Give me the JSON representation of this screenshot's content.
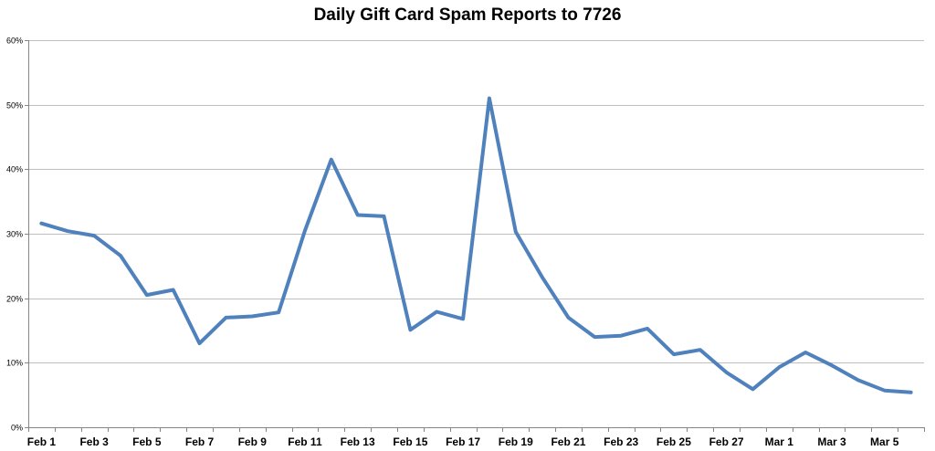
{
  "chart_data": {
    "type": "line",
    "title": "Daily Gift Card Spam Reports to 7726",
    "xlabel": "",
    "ylabel": "",
    "ylim": [
      0,
      60
    ],
    "y_unit": "%",
    "y_ticks": [
      "0%",
      "10%",
      "20%",
      "30%",
      "40%",
      "50%",
      "60%"
    ],
    "grid": true,
    "legend": "none",
    "x_tick_labels": [
      "Feb 1",
      "Feb 3",
      "Feb 5",
      "Feb 7",
      "Feb 9",
      "Feb 11",
      "Feb 13",
      "Feb 15",
      "Feb 17",
      "Feb 19",
      "Feb 21",
      "Feb 23",
      "Feb 25",
      "Feb 27",
      "Mar 1",
      "Mar 3",
      "Mar 5"
    ],
    "x": [
      "Feb 1",
      "Feb 2",
      "Feb 3",
      "Feb 4",
      "Feb 5",
      "Feb 6",
      "Feb 7",
      "Feb 8",
      "Feb 9",
      "Feb 10",
      "Feb 11",
      "Feb 12",
      "Feb 13",
      "Feb 14",
      "Feb 15",
      "Feb 16",
      "Feb 17",
      "Feb 18",
      "Feb 19",
      "Feb 20",
      "Feb 21",
      "Feb 22",
      "Feb 23",
      "Feb 24",
      "Feb 25",
      "Feb 26",
      "Feb 27",
      "Feb 28",
      "Mar 1",
      "Mar 2",
      "Mar 3",
      "Mar 4",
      "Mar 5",
      "Mar 6"
    ],
    "series": [
      {
        "color": "#4F81BD",
        "values": [
          31.6,
          30.4,
          29.7,
          26.6,
          20.5,
          21.3,
          13.0,
          17.0,
          17.2,
          17.8,
          30.5,
          41.5,
          32.9,
          32.7,
          15.1,
          17.9,
          16.8,
          51.0,
          30.3,
          23.3,
          17.0,
          14.0,
          14.2,
          15.3,
          11.3,
          12.0,
          8.5,
          5.9,
          9.3,
          11.6,
          9.6,
          7.3,
          5.7,
          5.4
        ]
      }
    ]
  }
}
